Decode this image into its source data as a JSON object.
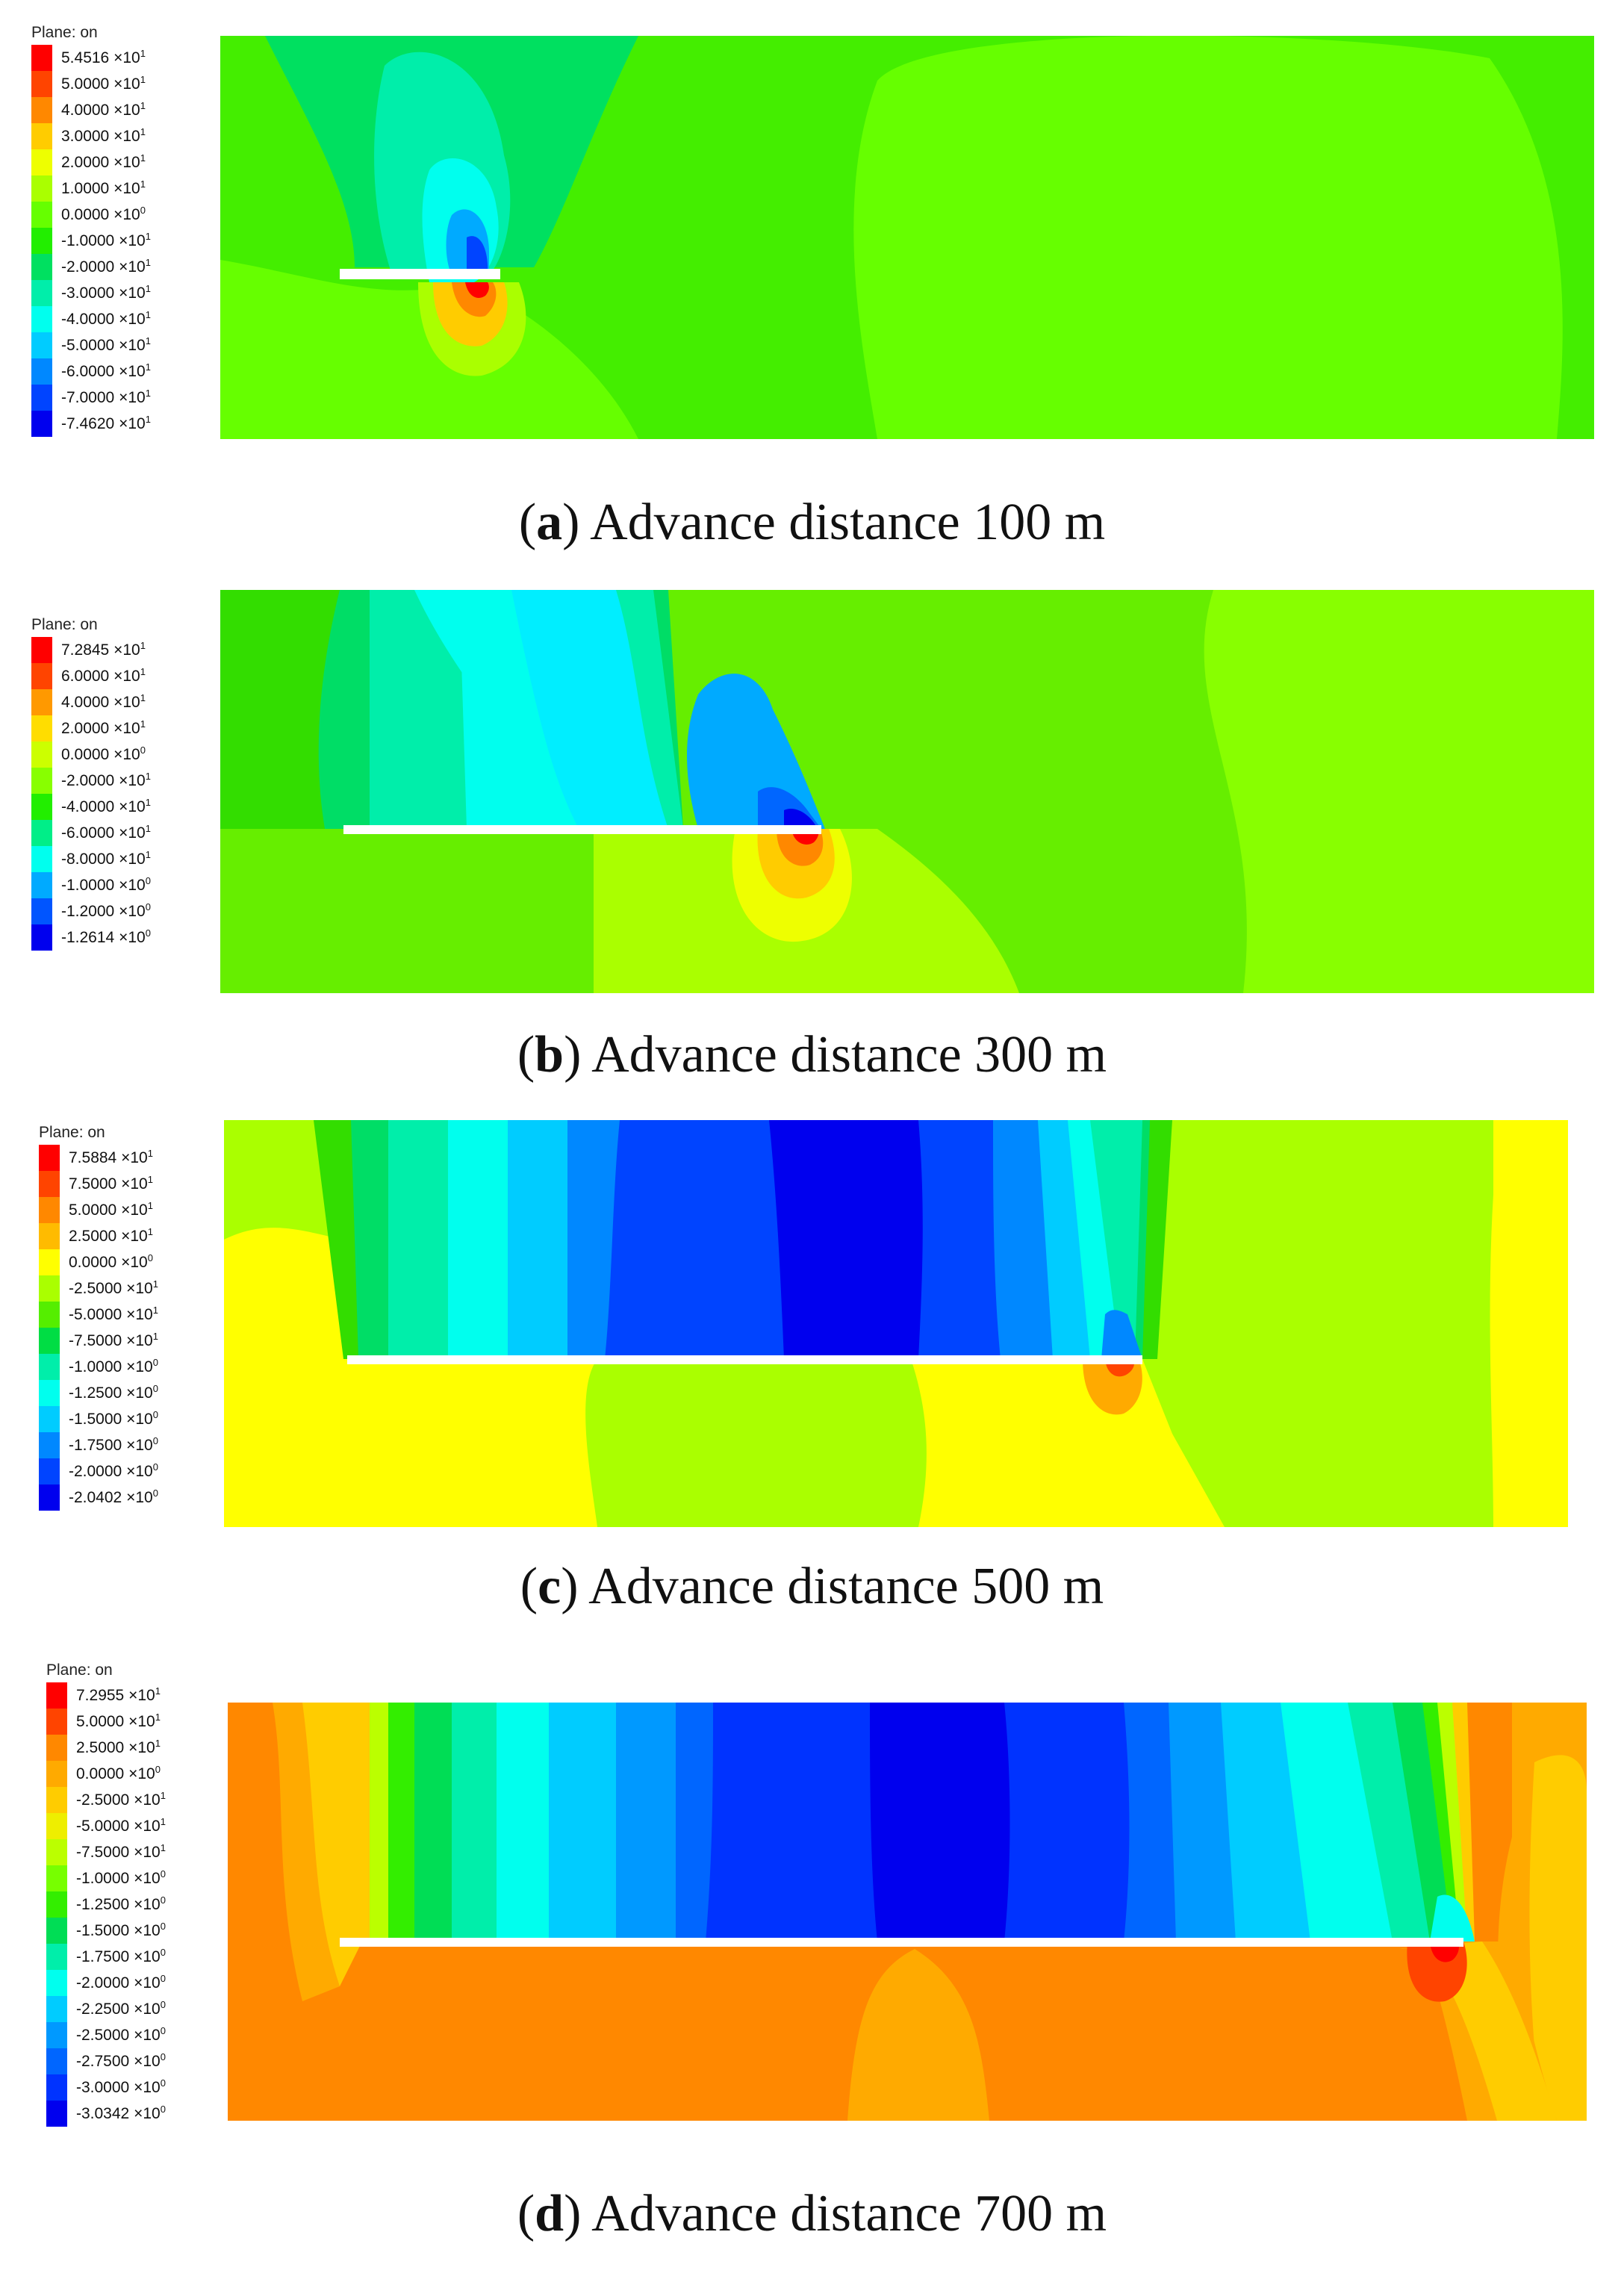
{
  "panels": [
    {
      "id": "a",
      "legend_title": "Plane: on",
      "legend": [
        {
          "m": "5.4516",
          "e": "1",
          "color": "#ff0000"
        },
        {
          "m": "5.0000",
          "e": "1",
          "color": "#ff4400"
        },
        {
          "m": "4.0000",
          "e": "1",
          "color": "#ff8800"
        },
        {
          "m": "3.0000",
          "e": "1",
          "color": "#ffcc00"
        },
        {
          "m": "2.0000",
          "e": "1",
          "color": "#eeff00"
        },
        {
          "m": "1.0000",
          "e": "1",
          "color": "#aaff00"
        },
        {
          "m": "0.0000",
          "e": "0",
          "color": "#66ff00"
        },
        {
          "m": "-1.0000",
          "e": "1",
          "color": "#22ee00"
        },
        {
          "m": "-2.0000",
          "e": "1",
          "color": "#00e060"
        },
        {
          "m": "-3.0000",
          "e": "1",
          "color": "#00eeaa"
        },
        {
          "m": "-4.0000",
          "e": "1",
          "color": "#00ffee"
        },
        {
          "m": "-5.0000",
          "e": "1",
          "color": "#00ccff"
        },
        {
          "m": "-6.0000",
          "e": "1",
          "color": "#0088ff"
        },
        {
          "m": "-7.0000",
          "e": "1",
          "color": "#0044ff"
        },
        {
          "m": "-7.4620",
          "e": "1",
          "color": "#0000ee"
        }
      ],
      "caption_letter": "a",
      "caption_text": "Advance distance 100 m"
    },
    {
      "id": "b",
      "legend_title": "Plane: on",
      "legend": [
        {
          "m": "7.2845",
          "e": "1",
          "color": "#ff0000"
        },
        {
          "m": "6.0000",
          "e": "1",
          "color": "#ff4400"
        },
        {
          "m": "4.0000",
          "e": "1",
          "color": "#ff9900"
        },
        {
          "m": "2.0000",
          "e": "1",
          "color": "#ffdd00"
        },
        {
          "m": "0.0000",
          "e": "0",
          "color": "#ccff00"
        },
        {
          "m": "-2.0000",
          "e": "1",
          "color": "#88ff00"
        },
        {
          "m": "-4.0000",
          "e": "1",
          "color": "#22ee00"
        },
        {
          "m": "-6.0000",
          "e": "1",
          "color": "#00ee88"
        },
        {
          "m": "-8.0000",
          "e": "1",
          "color": "#00ffee"
        },
        {
          "m": "-1.0000",
          "e": "0",
          "color": "#00aaff"
        },
        {
          "m": "-1.2000",
          "e": "0",
          "color": "#0055ff"
        },
        {
          "m": "-1.2614",
          "e": "0",
          "color": "#0000ee"
        }
      ],
      "caption_letter": "b",
      "caption_text": "Advance distance 300 m"
    },
    {
      "id": "c",
      "legend_title": "Plane: on",
      "legend": [
        {
          "m": "7.5884",
          "e": "1",
          "color": "#ff0000"
        },
        {
          "m": "7.5000",
          "e": "1",
          "color": "#ff4400"
        },
        {
          "m": "5.0000",
          "e": "1",
          "color": "#ff8800"
        },
        {
          "m": "2.5000",
          "e": "1",
          "color": "#ffbb00"
        },
        {
          "m": "0.0000",
          "e": "0",
          "color": "#ffff00"
        },
        {
          "m": "-2.5000",
          "e": "1",
          "color": "#aaff00"
        },
        {
          "m": "-5.0000",
          "e": "1",
          "color": "#55ee00"
        },
        {
          "m": "-7.5000",
          "e": "1",
          "color": "#00dd44"
        },
        {
          "m": "-1.0000",
          "e": "0",
          "color": "#00eeaa"
        },
        {
          "m": "-1.2500",
          "e": "0",
          "color": "#00ffee"
        },
        {
          "m": "-1.5000",
          "e": "0",
          "color": "#00ccff"
        },
        {
          "m": "-1.7500",
          "e": "0",
          "color": "#0088ff"
        },
        {
          "m": "-2.0000",
          "e": "0",
          "color": "#0044ff"
        },
        {
          "m": "-2.0402",
          "e": "0",
          "color": "#0000ee"
        }
      ],
      "caption_letter": "c",
      "caption_text": "Advance distance 500 m"
    },
    {
      "id": "d",
      "legend_title": "Plane: on",
      "legend": [
        {
          "m": "7.2955",
          "e": "1",
          "color": "#ff0000"
        },
        {
          "m": "5.0000",
          "e": "1",
          "color": "#ff4400"
        },
        {
          "m": "2.5000",
          "e": "1",
          "color": "#ff8800"
        },
        {
          "m": "0.0000",
          "e": "0",
          "color": "#ffaa00"
        },
        {
          "m": "-2.5000",
          "e": "1",
          "color": "#ffcc00"
        },
        {
          "m": "-5.0000",
          "e": "1",
          "color": "#eeee00"
        },
        {
          "m": "-7.5000",
          "e": "1",
          "color": "#bbff00"
        },
        {
          "m": "-1.0000",
          "e": "0",
          "color": "#77ff00"
        },
        {
          "m": "-1.2500",
          "e": "0",
          "color": "#33ee00"
        },
        {
          "m": "-1.5000",
          "e": "0",
          "color": "#00dd55"
        },
        {
          "m": "-1.7500",
          "e": "0",
          "color": "#00eeaa"
        },
        {
          "m": "-2.0000",
          "e": "0",
          "color": "#00ffee"
        },
        {
          "m": "-2.2500",
          "e": "0",
          "color": "#00ccff"
        },
        {
          "m": "-2.5000",
          "e": "0",
          "color": "#0099ff"
        },
        {
          "m": "-2.7500",
          "e": "0",
          "color": "#0066ff"
        },
        {
          "m": "-3.0000",
          "e": "0",
          "color": "#0033ff"
        },
        {
          "m": "-3.0342",
          "e": "0",
          "color": "#0000ee"
        }
      ],
      "caption_letter": "d",
      "caption_text": "Advance distance 700 m"
    }
  ]
}
